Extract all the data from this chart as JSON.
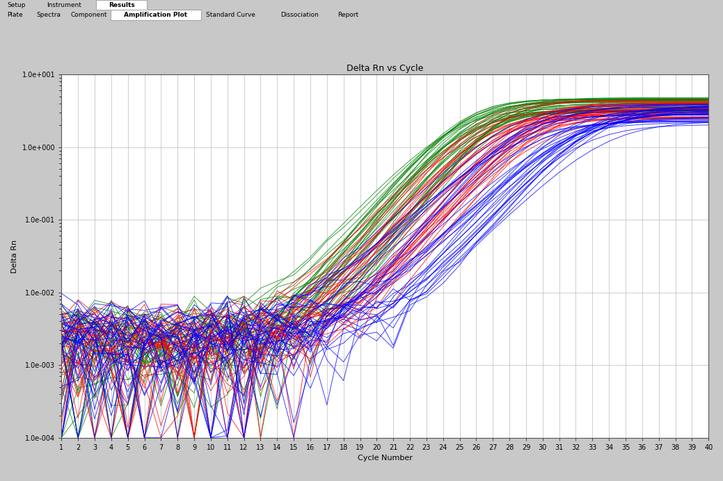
{
  "title": "Delta Rn vs Cycle",
  "xlabel": "Cycle Number",
  "ylabel": "Delta Rn",
  "xlim": [
    1,
    40
  ],
  "yticks": [
    0.0001,
    0.001,
    0.01,
    0.1,
    1.0,
    10.0
  ],
  "ytick_labels": [
    "1.0e-004",
    "1.0e-003",
    "1.0e-002",
    "1.0e-001",
    "1.0e+000",
    "1.0e+001"
  ],
  "xticks": [
    1,
    2,
    3,
    4,
    5,
    6,
    7,
    8,
    9,
    10,
    11,
    12,
    13,
    14,
    15,
    16,
    17,
    18,
    19,
    20,
    21,
    22,
    23,
    24,
    25,
    26,
    27,
    28,
    29,
    30,
    31,
    32,
    33,
    34,
    35,
    36,
    37,
    38,
    39,
    40
  ],
  "outer_bg": "#c8c8c8",
  "plot_bg": "#ffffff",
  "grid_color": "#bbbbbb",
  "n_green": 35,
  "n_red": 35,
  "n_blue": 35,
  "line_width": 0.7,
  "title_fontsize": 9,
  "axis_fontsize": 8,
  "tick_fontsize": 7,
  "tab1_labels": [
    "Setup",
    "Instrument",
    "Results"
  ],
  "tab2_labels": [
    "Plate",
    "Spectra",
    "Component",
    "Amplification Plot",
    "Standard Curve",
    "Dissociation",
    "Report"
  ],
  "active_tab1": "Results",
  "active_tab2": "Amplification Plot"
}
